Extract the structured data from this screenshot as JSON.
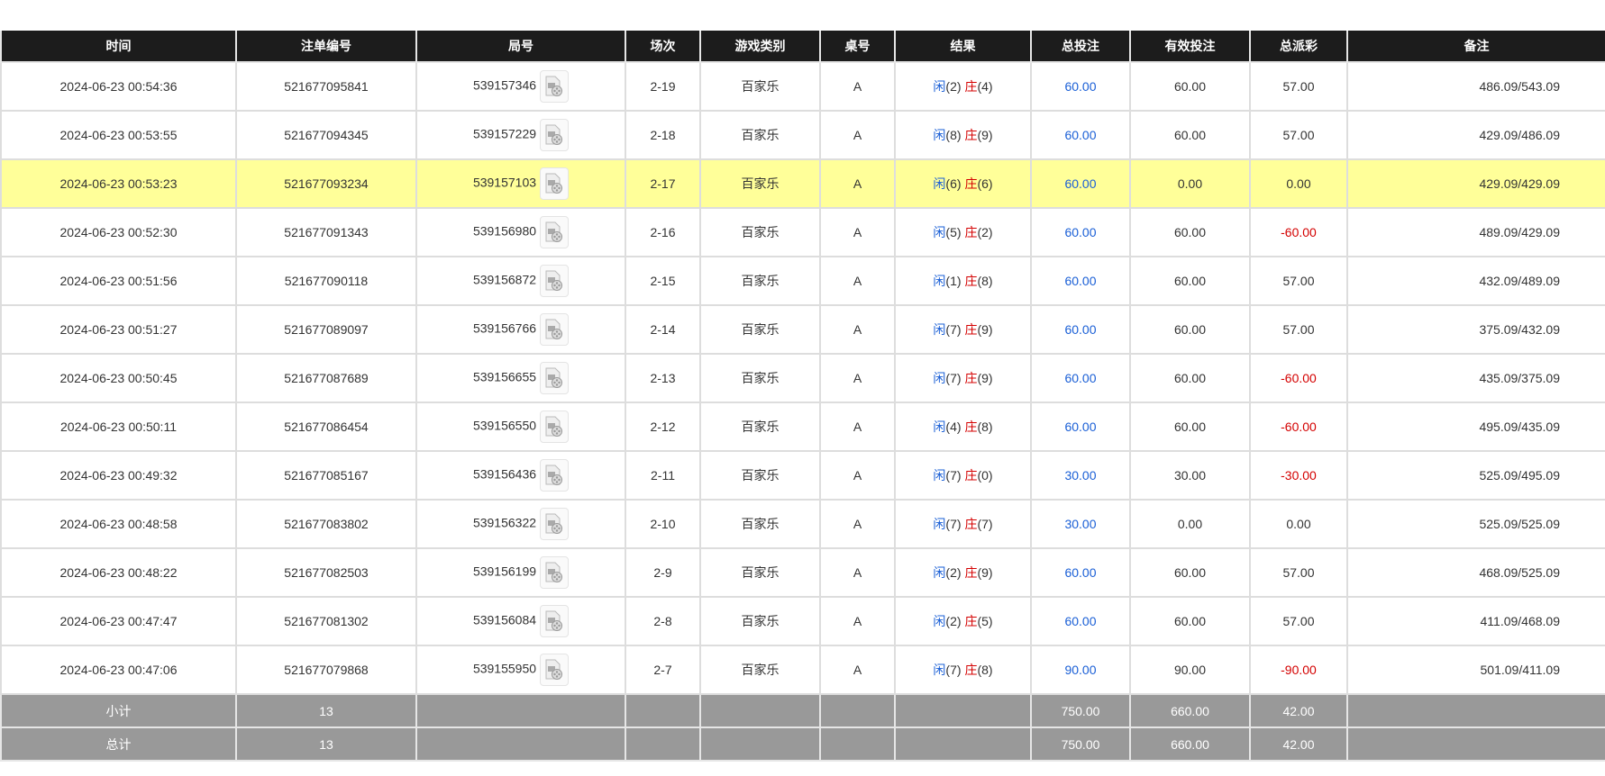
{
  "headers": [
    "时间",
    "注单编号",
    "局号",
    "场次",
    "游戏类别",
    "桌号",
    "结果",
    "总投注",
    "有效投注",
    "总派彩",
    "备注"
  ],
  "colors": {
    "header_bg": "#1c1c1c",
    "highlight": "#ffff99",
    "player": "#1a5fd6",
    "banker": "#d40000",
    "summary_bg": "#999999"
  },
  "row_icon": "video-replay-icon",
  "rows": [
    {
      "time": "2024-06-23 00:54:36",
      "bet_id": "521677095841",
      "round": "539157346",
      "shoe": "2-19",
      "game": "百家乐",
      "table": "A",
      "player_label": "闲",
      "player": "(2)",
      "banker_label": "庄",
      "banker": "(4)",
      "total_bet": "60.00",
      "valid_bet": "60.00",
      "payout": "57.00",
      "remark": "486.09/543.09"
    },
    {
      "time": "2024-06-23 00:53:55",
      "bet_id": "521677094345",
      "round": "539157229",
      "shoe": "2-18",
      "game": "百家乐",
      "table": "A",
      "player_label": "闲",
      "player": "(8)",
      "banker_label": "庄",
      "banker": "(9)",
      "total_bet": "60.00",
      "valid_bet": "60.00",
      "payout": "57.00",
      "remark": "429.09/486.09"
    },
    {
      "time": "2024-06-23 00:53:23",
      "bet_id": "521677093234",
      "round": "539157103",
      "shoe": "2-17",
      "game": "百家乐",
      "table": "A",
      "player_label": "闲",
      "player": "(6)",
      "banker_label": "庄",
      "banker": "(6)",
      "total_bet": "60.00",
      "valid_bet": "0.00",
      "payout": "0.00",
      "remark": "429.09/429.09",
      "highlight": true
    },
    {
      "time": "2024-06-23 00:52:30",
      "bet_id": "521677091343",
      "round": "539156980",
      "shoe": "2-16",
      "game": "百家乐",
      "table": "A",
      "player_label": "闲",
      "player": "(5)",
      "banker_label": "庄",
      "banker": "(2)",
      "total_bet": "60.00",
      "valid_bet": "60.00",
      "payout": "-60.00",
      "remark": "489.09/429.09"
    },
    {
      "time": "2024-06-23 00:51:56",
      "bet_id": "521677090118",
      "round": "539156872",
      "shoe": "2-15",
      "game": "百家乐",
      "table": "A",
      "player_label": "闲",
      "player": "(1)",
      "banker_label": "庄",
      "banker": "(8)",
      "total_bet": "60.00",
      "valid_bet": "60.00",
      "payout": "57.00",
      "remark": "432.09/489.09"
    },
    {
      "time": "2024-06-23 00:51:27",
      "bet_id": "521677089097",
      "round": "539156766",
      "shoe": "2-14",
      "game": "百家乐",
      "table": "A",
      "player_label": "闲",
      "player": "(7)",
      "banker_label": "庄",
      "banker": "(9)",
      "total_bet": "60.00",
      "valid_bet": "60.00",
      "payout": "57.00",
      "remark": "375.09/432.09"
    },
    {
      "time": "2024-06-23 00:50:45",
      "bet_id": "521677087689",
      "round": "539156655",
      "shoe": "2-13",
      "game": "百家乐",
      "table": "A",
      "player_label": "闲",
      "player": "(7)",
      "banker_label": "庄",
      "banker": "(9)",
      "total_bet": "60.00",
      "valid_bet": "60.00",
      "payout": "-60.00",
      "remark": "435.09/375.09"
    },
    {
      "time": "2024-06-23 00:50:11",
      "bet_id": "521677086454",
      "round": "539156550",
      "shoe": "2-12",
      "game": "百家乐",
      "table": "A",
      "player_label": "闲",
      "player": "(4)",
      "banker_label": "庄",
      "banker": "(8)",
      "total_bet": "60.00",
      "valid_bet": "60.00",
      "payout": "-60.00",
      "remark": "495.09/435.09"
    },
    {
      "time": "2024-06-23 00:49:32",
      "bet_id": "521677085167",
      "round": "539156436",
      "shoe": "2-11",
      "game": "百家乐",
      "table": "A",
      "player_label": "闲",
      "player": "(7)",
      "banker_label": "庄",
      "banker": "(0)",
      "total_bet": "30.00",
      "valid_bet": "30.00",
      "payout": "-30.00",
      "remark": "525.09/495.09"
    },
    {
      "time": "2024-06-23 00:48:58",
      "bet_id": "521677083802",
      "round": "539156322",
      "shoe": "2-10",
      "game": "百家乐",
      "table": "A",
      "player_label": "闲",
      "player": "(7)",
      "banker_label": "庄",
      "banker": "(7)",
      "total_bet": "30.00",
      "valid_bet": "0.00",
      "payout": "0.00",
      "remark": "525.09/525.09"
    },
    {
      "time": "2024-06-23 00:48:22",
      "bet_id": "521677082503",
      "round": "539156199",
      "shoe": "2-9",
      "game": "百家乐",
      "table": "A",
      "player_label": "闲",
      "player": "(2)",
      "banker_label": "庄",
      "banker": "(9)",
      "total_bet": "60.00",
      "valid_bet": "60.00",
      "payout": "57.00",
      "remark": "468.09/525.09"
    },
    {
      "time": "2024-06-23 00:47:47",
      "bet_id": "521677081302",
      "round": "539156084",
      "shoe": "2-8",
      "game": "百家乐",
      "table": "A",
      "player_label": "闲",
      "player": "(2)",
      "banker_label": "庄",
      "banker": "(5)",
      "total_bet": "60.00",
      "valid_bet": "60.00",
      "payout": "57.00",
      "remark": "411.09/468.09"
    },
    {
      "time": "2024-06-23 00:47:06",
      "bet_id": "521677079868",
      "round": "539155950",
      "shoe": "2-7",
      "game": "百家乐",
      "table": "A",
      "player_label": "闲",
      "player": "(7)",
      "banker_label": "庄",
      "banker": "(8)",
      "total_bet": "90.00",
      "valid_bet": "90.00",
      "payout": "-90.00",
      "remark": "501.09/411.09"
    }
  ],
  "subtotal": {
    "label": "小计",
    "count": "13",
    "total_bet": "750.00",
    "valid_bet": "660.00",
    "payout": "42.00"
  },
  "total": {
    "label": "总计",
    "count": "13",
    "total_bet": "750.00",
    "valid_bet": "660.00",
    "payout": "42.00"
  }
}
